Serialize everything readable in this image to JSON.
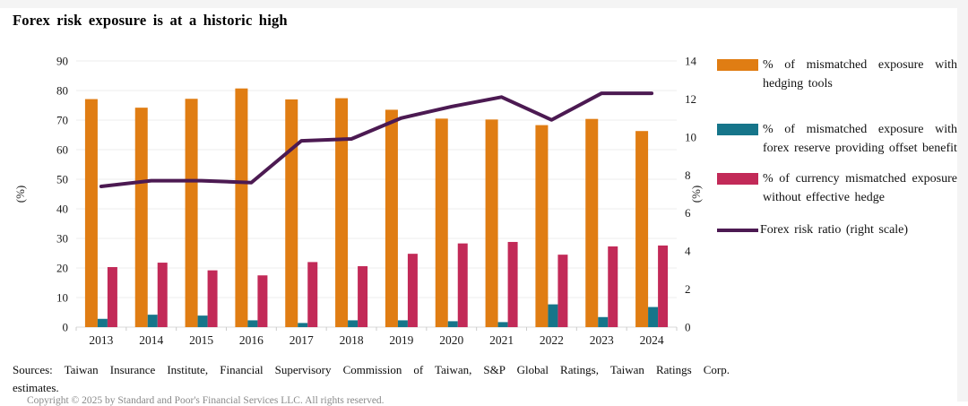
{
  "title": "Forex risk exposure is at a historic high",
  "chart_data": {
    "type": "bar",
    "subtype": "grouped bars with overlaid line on secondary axis",
    "categories": [
      "2013",
      "2014",
      "2015",
      "2016",
      "2017",
      "2018",
      "2019",
      "2020",
      "2021",
      "2022",
      "2023",
      "2024"
    ],
    "series": [
      {
        "name": "% of mismatched exposure with hedging tools",
        "type": "bar",
        "axis": "left",
        "color": "#E07D13",
        "values": [
          77.1,
          74.2,
          77.2,
          80.7,
          77.0,
          77.4,
          73.5,
          70.5,
          70.2,
          68.3,
          70.4,
          66.3
        ]
      },
      {
        "name": "% of mismatched exposure with forex reserve providing offset benefit",
        "type": "bar",
        "axis": "left",
        "color": "#16758A",
        "values": [
          2.8,
          4.2,
          3.9,
          2.3,
          1.4,
          2.3,
          2.3,
          2.0,
          1.7,
          7.7,
          3.4,
          6.8
        ]
      },
      {
        "name": "% of currency mismatched exposure without effective hedge",
        "type": "bar",
        "axis": "left",
        "color": "#C22A58",
        "values": [
          20.3,
          21.8,
          19.2,
          17.5,
          22.0,
          20.6,
          24.8,
          28.3,
          28.8,
          24.5,
          27.3,
          27.6
        ]
      },
      {
        "name": "Forex risk ratio (right scale)",
        "type": "line",
        "axis": "right",
        "color": "#4C1A52",
        "values": [
          7.4,
          7.7,
          7.7,
          7.6,
          9.8,
          9.9,
          11.0,
          11.6,
          12.1,
          10.9,
          12.3,
          12.3
        ]
      }
    ],
    "left_axis": {
      "label": "(%)",
      "min": 0,
      "max": 90,
      "step": 10
    },
    "right_axis": {
      "label": "(%)",
      "min": 0,
      "max": 14,
      "step": 2
    },
    "grid": true,
    "legend_position": "right"
  },
  "footer": {
    "sources_line1": "Sources: Taiwan Insurance Institute, Financial Supervisory Commission of Taiwan, S&P Global Ratings, Taiwan Ratings Corp.",
    "sources_line2": "estimates.",
    "copyright": "Copyright © 2025 by Standard and Poor's Financial Services LLC. All rights reserved."
  }
}
